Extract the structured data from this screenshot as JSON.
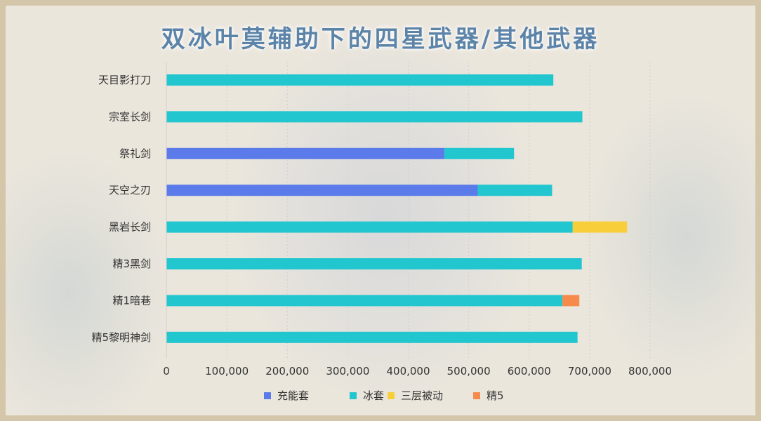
{
  "chart_data": {
    "type": "bar",
    "orientation": "horizontal",
    "stacked": true,
    "title": "双冰叶莫辅助下的四星武器/其他武器",
    "categories": [
      "天目影打刀",
      "宗室长剑",
      "祭礼剑",
      "天空之刃",
      "黑岩长剑",
      "精3黑剑",
      "精1暗巷",
      "精5黎明神剑"
    ],
    "series": [
      {
        "name": "充能套",
        "color": "#5b7bea",
        "values": [
          0,
          0,
          460000,
          515000,
          0,
          0,
          0,
          0
        ]
      },
      {
        "name": "冰套",
        "color": "#21c6cf",
        "values": [
          640000,
          688000,
          115000,
          123000,
          672000,
          687000,
          655000,
          680000
        ]
      },
      {
        "name": "三层被动",
        "color": "#f8cf3a",
        "values": [
          0,
          0,
          0,
          0,
          90000,
          0,
          0,
          0
        ]
      },
      {
        "name": "精5",
        "color": "#f58a4b",
        "values": [
          0,
          0,
          0,
          0,
          0,
          0,
          28000,
          0
        ]
      }
    ],
    "xlim": [
      0,
      800000
    ],
    "xticks": [
      "0",
      "100,000",
      "200,000",
      "300,000",
      "400,000",
      "500,000",
      "600,000",
      "700,000",
      "800,000"
    ],
    "xtick_values": [
      0,
      100000,
      200000,
      300000,
      400000,
      500000,
      600000,
      700000,
      800000
    ],
    "grid": "vertical dotted",
    "legend_position": "bottom"
  }
}
